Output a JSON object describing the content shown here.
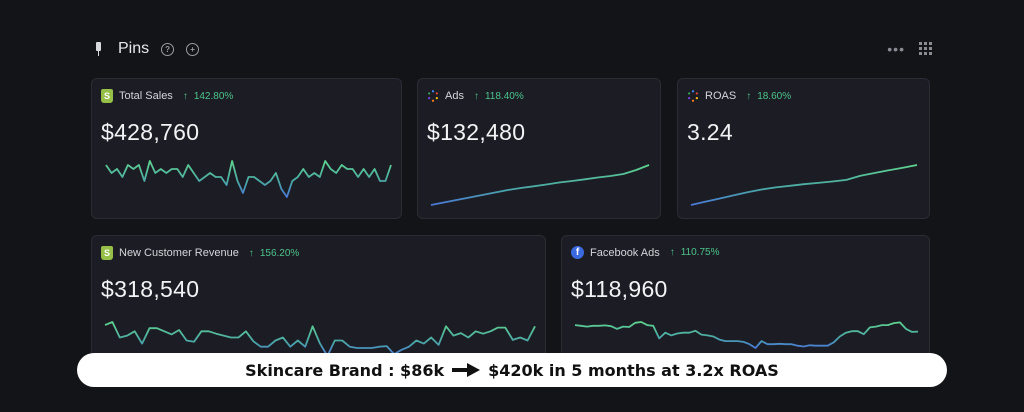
{
  "header": {
    "title": "Pins",
    "help_icon": "question-circle-icon",
    "add_icon": "plus-circle-icon",
    "more_icon": "ellipsis-icon",
    "grid_icon": "grid-icon"
  },
  "colors": {
    "accent_up": "#4cc38a",
    "line_low": "#4a78d8",
    "line_high": "#5ed38e",
    "background": "#131418",
    "card": "#1c1d24"
  },
  "cards": [
    {
      "label": "Total Sales",
      "change": "142.80%",
      "value": "$428,760",
      "icon": "shopify-icon",
      "trend": [
        6,
        4,
        5,
        3,
        6,
        5,
        6,
        2,
        7,
        4,
        5,
        4,
        5,
        5,
        3,
        6,
        4,
        2,
        3,
        4,
        3,
        3,
        1,
        7,
        2,
        -1,
        3,
        3,
        2,
        1,
        2,
        4,
        0,
        -2,
        2,
        3,
        5,
        3,
        4,
        3,
        7,
        5,
        4,
        6,
        5,
        5,
        3,
        5,
        3,
        5,
        2,
        2,
        6
      ]
    },
    {
      "label": "Ads",
      "change": "118.40%",
      "value": "$132,480",
      "icon": "ads-icon",
      "trend": [
        0,
        1,
        2,
        3,
        4,
        5,
        6,
        6.8,
        7.5,
        8.2,
        9,
        9.6,
        10.3,
        11,
        11.6,
        12.4,
        14,
        16
      ]
    },
    {
      "label": "ROAS",
      "change": "18.60%",
      "value": "3.24",
      "icon": "ads-icon",
      "trend": [
        0,
        1.2,
        2.4,
        3.6,
        4.8,
        5.8,
        6.6,
        7.2,
        7.8,
        8.3,
        8.8,
        9.4,
        11,
        12,
        13,
        14,
        15
      ]
    },
    {
      "label": "New Customer Revenue",
      "change": "156.20%",
      "value": "$318,540",
      "icon": "shopify-icon",
      "trend": [
        6,
        6.5,
        4,
        4.3,
        5,
        3,
        5.5,
        5.5,
        5,
        4.5,
        5.2,
        3.5,
        3.3,
        5,
        5,
        4.6,
        4.3,
        4,
        4,
        5,
        3.4,
        2.5,
        2.5,
        3.5,
        4,
        2.5,
        3.5,
        2.5,
        5.8,
        3,
        1,
        3.5,
        3.5,
        2.5,
        2.3,
        2.3,
        2.3,
        2.5,
        2.6,
        1.3,
        2,
        2.5,
        3.5,
        3,
        4,
        2.8,
        5.8,
        4.3,
        4.7,
        4,
        5,
        4.6,
        5,
        5.6,
        5.6,
        3.6,
        4,
        3.5,
        5.8
      ]
    },
    {
      "label": "Facebook Ads",
      "change": "110.75%",
      "value": "$118,960",
      "icon": "facebook-icon",
      "trend": [
        8,
        7.8,
        7.6,
        7.8,
        7.8,
        7.9,
        7.7,
        7,
        7.6,
        7.5,
        8.6,
        8.8,
        8,
        7.8,
        4.5,
        6,
        5.3,
        5.8,
        6,
        6,
        6.5,
        5.5,
        5.3,
        5,
        4.2,
        3.8,
        3.8,
        3.8,
        3.6,
        3,
        2,
        3.8,
        3,
        3,
        3.1,
        3,
        3,
        2.6,
        2.4,
        2.7,
        2.6,
        2.6,
        2.6,
        3.5,
        5,
        6,
        6.4,
        6.4,
        5.6,
        7.4,
        7.6,
        8,
        8,
        8.5,
        8.7,
        7,
        6.2,
        6.3
      ]
    }
  ],
  "banner": {
    "left": "Skincare Brand : $86k",
    "arrow_icon": "arrow-right-icon",
    "right": "$420k in 5 months at 3.2x ROAS"
  }
}
